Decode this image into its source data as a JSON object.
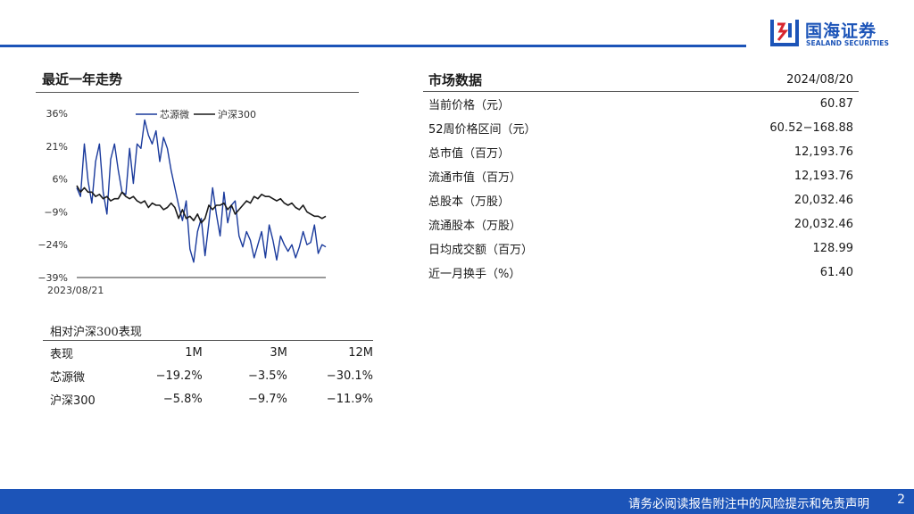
{
  "header": {
    "logo_cn": "国海证券",
    "logo_en": "SEALAND SECURITIES",
    "brand_color": "#1c54b8"
  },
  "trend": {
    "title": "最近一年走势"
  },
  "chart_data": {
    "type": "line",
    "title": "",
    "xlabel": "",
    "ylabel": "",
    "ylim": [
      -39,
      36
    ],
    "yticks": [
      "36%",
      "21%",
      "6%",
      "−9%",
      "−24%",
      "−39%"
    ],
    "ytick_values": [
      36,
      21,
      6,
      -9,
      -24,
      -39
    ],
    "x_start_label": "2023/08/21",
    "legend_placement": "top",
    "series": [
      {
        "name": "芯源微",
        "color": "#1a3a9c",
        "values": [
          2,
          -2,
          22,
          5,
          -5,
          14,
          22,
          0,
          -10,
          15,
          22,
          10,
          0,
          -1,
          20,
          4,
          22,
          20,
          33,
          26,
          22,
          28,
          14,
          25,
          20,
          10,
          2,
          -6,
          -13,
          -4,
          -26,
          -32,
          -18,
          -12,
          -29,
          -14,
          2,
          -10,
          -20,
          0,
          -14,
          -6,
          -4,
          -20,
          -25,
          -18,
          -22,
          -30,
          -24,
          -18,
          -30,
          -15,
          -22,
          -31,
          -20,
          -24,
          -27,
          -24,
          -30,
          -25,
          -18,
          -24,
          -23,
          -15,
          -28,
          -24,
          -25
        ]
      },
      {
        "name": "沪深300",
        "color": "#1a1a1a",
        "values": [
          3,
          0,
          2,
          0,
          0,
          -2,
          -1,
          -3,
          -2,
          -4,
          -3,
          -3,
          0,
          -2,
          -3,
          -2,
          -4,
          -5,
          -4,
          -7,
          -5,
          -6,
          -6,
          -8,
          -7,
          -5,
          -7,
          -12,
          -8,
          -12,
          -11,
          -13,
          -10,
          -14,
          -12,
          -6,
          -8,
          -6,
          -6,
          -5,
          -8,
          -6,
          -10,
          -8,
          -6,
          -4,
          -5,
          -2,
          -3,
          -1,
          -2,
          -2,
          -3,
          -4,
          -3,
          -5,
          -6,
          -5,
          -7,
          -8,
          -6,
          -9,
          -10,
          -11,
          -11,
          -12,
          -11
        ]
      }
    ]
  },
  "perf": {
    "title": "相对沪深300表现",
    "headers": [
      "表现",
      "1M",
      "3M",
      "12M"
    ],
    "rows": [
      [
        "芯源微",
        "−19.2%",
        "−3.5%",
        "−30.1%"
      ],
      [
        "沪深300",
        "−5.8%",
        "−9.7%",
        "−11.9%"
      ]
    ]
  },
  "market": {
    "title": "市场数据",
    "date": "2024/08/20",
    "rows": [
      [
        "当前价格（元）",
        "60.87"
      ],
      [
        "52周价格区间（元）",
        "60.52−168.88"
      ],
      [
        "总市值（百万）",
        "12,193.76"
      ],
      [
        "流通市值（百万）",
        "12,193.76"
      ],
      [
        "总股本（万股）",
        "20,032.46"
      ],
      [
        "流通股本（万股）",
        "20,032.46"
      ],
      [
        "日均成交额（百万）",
        "128.99"
      ],
      [
        "近一月换手（%）",
        "61.40"
      ]
    ]
  },
  "footer": {
    "disclaimer": "请务必阅读报告附注中的风险提示和免责声明",
    "page": "2"
  }
}
